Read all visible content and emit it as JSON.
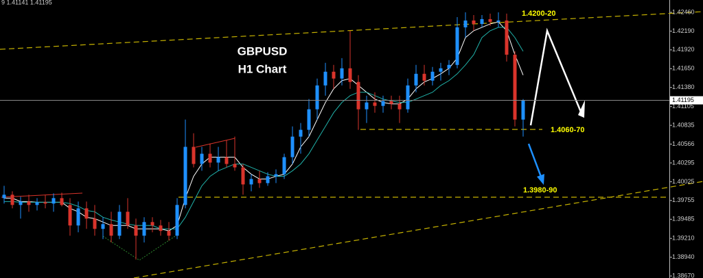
{
  "chart_data": {
    "type": "candlestick",
    "header": "9 1.41141 1.41195",
    "title": "GBPUSD",
    "subtitle": "H1 Chart",
    "annotations": [
      "1.4200-20",
      "1.4060-70",
      "1.3980-90"
    ],
    "current_price": 1.41195,
    "up_color": "#1e90ff",
    "down_color": "#d9342b",
    "open": [
      1.39789,
      1.39838,
      1.39691,
      1.3974,
      1.39691,
      1.3973,
      1.39711,
      1.39789,
      1.39691,
      1.39396,
      1.39642,
      1.39495,
      1.39347,
      1.39416,
      1.39249,
      1.39593,
      1.39396,
      1.39249,
      1.39445,
      1.39396,
      1.39318,
      1.39249,
      1.39691,
      1.40526,
      1.4028,
      1.40427,
      1.403,
      1.40378,
      1.4028,
      1.40231,
      1.39986,
      1.40064,
      1.40005,
      1.40103,
      1.40133,
      1.40378,
      1.40673,
      1.40771,
      1.41066,
      1.41409,
      1.41606,
      1.41508,
      1.41655,
      1.41459,
      1.41066,
      1.41164,
      1.41115,
      1.41184,
      1.41144,
      1.41066,
      1.41409,
      1.41576,
      1.41478,
      1.41606,
      1.41655,
      1.41704,
      1.42244,
      1.42342,
      1.42293,
      1.42362,
      1.42323,
      1.42342,
      1.41851,
      1.40918
    ],
    "high": [
      1.39966,
      1.39887,
      1.39809,
      1.39838,
      1.39789,
      1.39838,
      1.39858,
      1.39868,
      1.39789,
      1.3974,
      1.3974,
      1.39691,
      1.39514,
      1.39593,
      1.39691,
      1.39789,
      1.39495,
      1.39514,
      1.39514,
      1.39475,
      1.39445,
      1.39789,
      1.40918,
      1.40722,
      1.40526,
      1.40575,
      1.40526,
      1.40624,
      1.40673,
      1.4028,
      1.40133,
      1.40182,
      1.40162,
      1.40202,
      1.40427,
      1.4082,
      1.40869,
      1.41213,
      1.41508,
      1.41734,
      1.41704,
      1.41802,
      1.42195,
      1.41557,
      1.41262,
      1.41311,
      1.41262,
      1.41262,
      1.41262,
      1.41508,
      1.41704,
      1.41704,
      1.41675,
      1.41734,
      1.41773,
      1.42391,
      1.4246,
      1.42421,
      1.42421,
      1.42441,
      1.4246,
      1.42441,
      1.419,
      1.41213
    ],
    "low": [
      1.39711,
      1.39642,
      1.39495,
      1.39593,
      1.39612,
      1.39642,
      1.39593,
      1.39671,
      1.39249,
      1.39298,
      1.39347,
      1.39249,
      1.392,
      1.39151,
      1.392,
      1.39347,
      1.38905,
      1.39151,
      1.39298,
      1.39249,
      1.3918,
      1.392,
      1.39642,
      1.40231,
      1.40182,
      1.40231,
      1.40182,
      1.40231,
      1.40182,
      1.39838,
      1.39887,
      1.39936,
      1.39966,
      1.40005,
      1.40064,
      1.4028,
      1.40427,
      1.40673,
      1.40918,
      1.41262,
      1.4136,
      1.41409,
      1.4136,
      1.40771,
      1.40869,
      1.41017,
      1.41017,
      1.41066,
      1.40869,
      1.41017,
      1.41311,
      1.41409,
      1.41409,
      1.41478,
      1.41557,
      1.41655,
      1.42097,
      1.42195,
      1.42244,
      1.42264,
      1.42244,
      1.41753,
      1.4082,
      1.40673
    ],
    "close": [
      1.39838,
      1.39691,
      1.3974,
      1.39691,
      1.3973,
      1.39711,
      1.39789,
      1.39691,
      1.39396,
      1.39642,
      1.39495,
      1.39347,
      1.39416,
      1.39249,
      1.39593,
      1.39396,
      1.39249,
      1.39445,
      1.39396,
      1.39318,
      1.39249,
      1.39691,
      1.40526,
      1.4028,
      1.40427,
      1.403,
      1.40378,
      1.4028,
      1.40231,
      1.39986,
      1.40064,
      1.40005,
      1.40103,
      1.40133,
      1.40378,
      1.40673,
      1.40771,
      1.41066,
      1.41409,
      1.41606,
      1.41508,
      1.41655,
      1.41459,
      1.41066,
      1.41164,
      1.41115,
      1.41184,
      1.41144,
      1.41066,
      1.41409,
      1.41576,
      1.41478,
      1.41606,
      1.41655,
      1.41704,
      1.42244,
      1.42342,
      1.42293,
      1.42362,
      1.42323,
      1.42342,
      1.41851,
      1.40918,
      1.41195
    ],
    "moving_averages": [
      {
        "color": "#ffffff",
        "values": [
          1.39789,
          1.39789,
          1.3974,
          1.3974,
          1.3973,
          1.3973,
          1.3973,
          1.3973,
          1.39642,
          1.39593,
          1.39514,
          1.39495,
          1.39445,
          1.39396,
          1.39396,
          1.39396,
          1.39347,
          1.39347,
          1.39347,
          1.39347,
          1.39318,
          1.39396,
          1.39789,
          1.40103,
          1.4028,
          1.40378,
          1.40378,
          1.40378,
          1.40378,
          1.40231,
          1.40133,
          1.40064,
          1.40064,
          1.40103,
          1.40133,
          1.4028,
          1.40526,
          1.40673,
          1.40918,
          1.41164,
          1.4136,
          1.41478,
          1.41508,
          1.41409,
          1.41311,
          1.41213,
          1.41164,
          1.41144,
          1.41144,
          1.41213,
          1.4136,
          1.41459,
          1.41508,
          1.41576,
          1.41655,
          1.41802,
          1.42097,
          1.42195,
          1.42244,
          1.42293,
          1.42323,
          1.42195,
          1.41851,
          1.41557
        ]
      },
      {
        "color": "#20b2aa",
        "values": [
          1.3974,
          1.3974,
          1.3973,
          1.3973,
          1.3973,
          1.3973,
          1.3973,
          1.3973,
          1.39711,
          1.39671,
          1.39612,
          1.39593,
          1.39514,
          1.39475,
          1.39445,
          1.39416,
          1.39396,
          1.39396,
          1.39396,
          1.39347,
          1.39347,
          1.39347,
          1.39514,
          1.3974,
          1.39966,
          1.40103,
          1.40182,
          1.40231,
          1.4028,
          1.4028,
          1.40231,
          1.40182,
          1.40133,
          1.40103,
          1.40103,
          1.40182,
          1.4028,
          1.40427,
          1.40624,
          1.4082,
          1.41017,
          1.41164,
          1.41262,
          1.41311,
          1.41311,
          1.41262,
          1.41213,
          1.41184,
          1.41164,
          1.41164,
          1.41213,
          1.41262,
          1.41311,
          1.41409,
          1.41478,
          1.41576,
          1.41704,
          1.41851,
          1.42097,
          1.42195,
          1.42244,
          1.42244,
          1.42097,
          1.419
        ]
      }
    ],
    "ylim": [
      1.38641,
      1.42637
    ],
    "yticks": [
      {
        "value": 1.4246,
        "label": "1.42460"
      },
      {
        "value": 1.4219,
        "label": "1.42190"
      },
      {
        "value": 1.4192,
        "label": "1.41920"
      },
      {
        "value": 1.4165,
        "label": "1.41650"
      },
      {
        "value": 1.4138,
        "label": "1.41380"
      },
      1.41105,
      1.40835,
      1.40566,
      1.40295,
      1.40025,
      1.39755,
      1.39485,
      {
        "value": 1.3921,
        "label": "1.39210"
      },
      {
        "value": 1.3894,
        "label": "1.38940"
      },
      {
        "value": 1.3867,
        "label": "1.38670"
      }
    ]
  }
}
